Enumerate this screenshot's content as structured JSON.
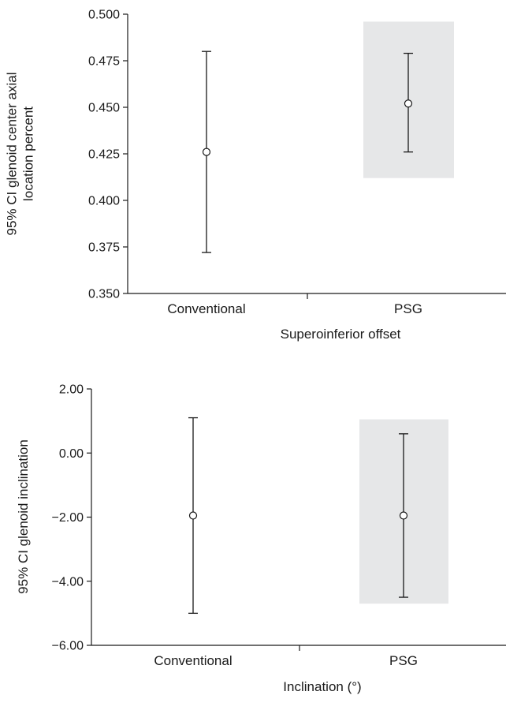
{
  "chart_data": [
    {
      "type": "scatter",
      "title": "",
      "xlabel": "Superoinferior offset",
      "ylabel_lines": [
        "95% CI glenoid center axial",
        "location percent"
      ],
      "ylim": [
        0.35,
        0.5
      ],
      "yticks": [
        "0.500",
        "0.475",
        "0.450",
        "0.425",
        "0.400",
        "0.375",
        "0.350"
      ],
      "ytick_values": [
        0.5,
        0.475,
        0.45,
        0.425,
        0.4,
        0.375,
        0.35
      ],
      "categories": [
        "Conventional",
        "PSG"
      ],
      "points": [
        {
          "category": "Conventional",
          "mean": 0.426,
          "lower": 0.372,
          "upper": 0.48
        },
        {
          "category": "PSG",
          "mean": 0.452,
          "lower": 0.426,
          "upper": 0.479
        }
      ],
      "highlight": {
        "category": "PSG",
        "ymin": 0.412,
        "ymax": 0.496,
        "color": "#e6e7e8"
      }
    },
    {
      "type": "scatter",
      "title": "",
      "xlabel": "Inclination (°)",
      "ylabel_lines": [
        "95% CI glenoid inclination"
      ],
      "ylim": [
        -6.0,
        2.0
      ],
      "yticks": [
        "2.00",
        "0.00",
        "−2.00",
        "−4.00",
        "−6.00"
      ],
      "ytick_values": [
        2.0,
        0.0,
        -2.0,
        -4.0,
        -6.0
      ],
      "categories": [
        "Conventional",
        "PSG"
      ],
      "points": [
        {
          "category": "Conventional",
          "mean": -1.95,
          "lower": -5.0,
          "upper": 1.1
        },
        {
          "category": "PSG",
          "mean": -1.95,
          "lower": -4.5,
          "upper": 0.6
        }
      ],
      "highlight": {
        "category": "PSG",
        "ymin": -4.7,
        "ymax": 1.05,
        "color": "#e6e7e8"
      }
    }
  ]
}
